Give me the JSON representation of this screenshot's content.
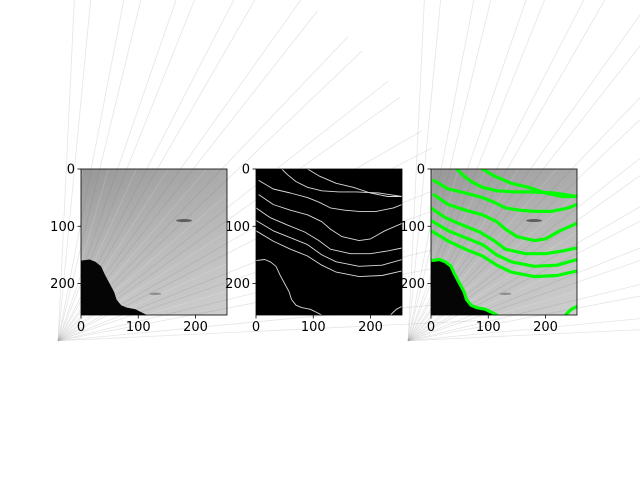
{
  "figure": {
    "background_color": "#ffffff",
    "axis_color": "#000000",
    "panel_titles": [
      "",
      "",
      ""
    ]
  },
  "chart_data": [
    {
      "type": "heatmap",
      "subject": "grayscale wood cross-section image (tree rings)",
      "colormap": "gray",
      "x_range": [
        0,
        255
      ],
      "y_range": [
        0,
        255
      ],
      "y_inverted": true,
      "xticks": [
        0,
        100,
        200
      ],
      "yticks": [
        0,
        100,
        200
      ],
      "grid": false,
      "dark_region_boundary": [
        [
          0,
          160
        ],
        [
          15,
          158
        ],
        [
          25,
          162
        ],
        [
          35,
          170
        ],
        [
          42,
          185
        ],
        [
          50,
          200
        ],
        [
          58,
          215
        ],
        [
          62,
          228
        ],
        [
          70,
          238
        ],
        [
          80,
          242
        ],
        [
          95,
          245
        ],
        [
          105,
          250
        ],
        [
          115,
          255
        ]
      ]
    },
    {
      "type": "heatmap",
      "subject": "binary ring-boundary mask (white contour lines on black)",
      "colormap": "gray",
      "x_range": [
        0,
        255
      ],
      "y_range": [
        0,
        255
      ],
      "y_inverted": true,
      "xticks": [
        0,
        100,
        200
      ],
      "yticks": [
        0,
        100,
        200
      ],
      "grid": false,
      "line_color": "#d9d9d9",
      "contours": [
        [
          [
            45,
            0
          ],
          [
            55,
            10
          ],
          [
            70,
            22
          ],
          [
            90,
            32
          ],
          [
            115,
            38
          ],
          [
            145,
            40
          ],
          [
            175,
            40
          ],
          [
            215,
            42
          ],
          [
            255,
            48
          ]
        ],
        [
          [
            90,
            0
          ],
          [
            110,
            12
          ],
          [
            140,
            25
          ],
          [
            170,
            32
          ],
          [
            200,
            42
          ],
          [
            230,
            48
          ],
          [
            255,
            48
          ]
        ],
        [
          [
            5,
            20
          ],
          [
            30,
            35
          ],
          [
            60,
            42
          ],
          [
            90,
            50
          ],
          [
            110,
            58
          ],
          [
            130,
            68
          ],
          [
            155,
            72
          ],
          [
            180,
            74
          ],
          [
            210,
            74
          ],
          [
            240,
            68
          ],
          [
            255,
            62
          ]
        ],
        [
          [
            5,
            45
          ],
          [
            30,
            62
          ],
          [
            60,
            72
          ],
          [
            90,
            80
          ],
          [
            115,
            92
          ],
          [
            130,
            105
          ],
          [
            150,
            118
          ],
          [
            180,
            125
          ],
          [
            200,
            122
          ],
          [
            225,
            108
          ],
          [
            255,
            95
          ]
        ],
        [
          [
            0,
            68
          ],
          [
            25,
            85
          ],
          [
            55,
            98
          ],
          [
            85,
            110
          ],
          [
            110,
            125
          ],
          [
            130,
            140
          ],
          [
            165,
            148
          ],
          [
            200,
            148
          ],
          [
            230,
            143
          ],
          [
            255,
            138
          ]
        ],
        [
          [
            0,
            90
          ],
          [
            30,
            108
          ],
          [
            60,
            120
          ],
          [
            90,
            132
          ],
          [
            115,
            150
          ],
          [
            140,
            162
          ],
          [
            180,
            170
          ],
          [
            220,
            168
          ],
          [
            255,
            158
          ]
        ],
        [
          [
            0,
            108
          ],
          [
            30,
            126
          ],
          [
            60,
            140
          ],
          [
            90,
            152
          ],
          [
            115,
            168
          ],
          [
            140,
            180
          ],
          [
            180,
            188
          ],
          [
            220,
            186
          ],
          [
            255,
            178
          ]
        ],
        [
          [
            0,
            160
          ],
          [
            15,
            158
          ],
          [
            25,
            162
          ],
          [
            35,
            170
          ],
          [
            42,
            185
          ],
          [
            50,
            200
          ],
          [
            58,
            215
          ],
          [
            62,
            228
          ],
          [
            70,
            238
          ],
          [
            80,
            242
          ],
          [
            95,
            245
          ],
          [
            105,
            250
          ],
          [
            115,
            255
          ]
        ],
        [
          [
            235,
            255
          ],
          [
            245,
            245
          ],
          [
            255,
            240
          ]
        ]
      ]
    },
    {
      "type": "heatmap",
      "subject": "grayscale image with detected ring boundaries overlaid in green",
      "colormap": "gray",
      "overlay_color": "#00ff00",
      "x_range": [
        0,
        255
      ],
      "y_range": [
        0,
        255
      ],
      "y_inverted": true,
      "xticks": [
        0,
        100,
        200
      ],
      "yticks": [
        0,
        100,
        200
      ],
      "grid": false
    }
  ]
}
